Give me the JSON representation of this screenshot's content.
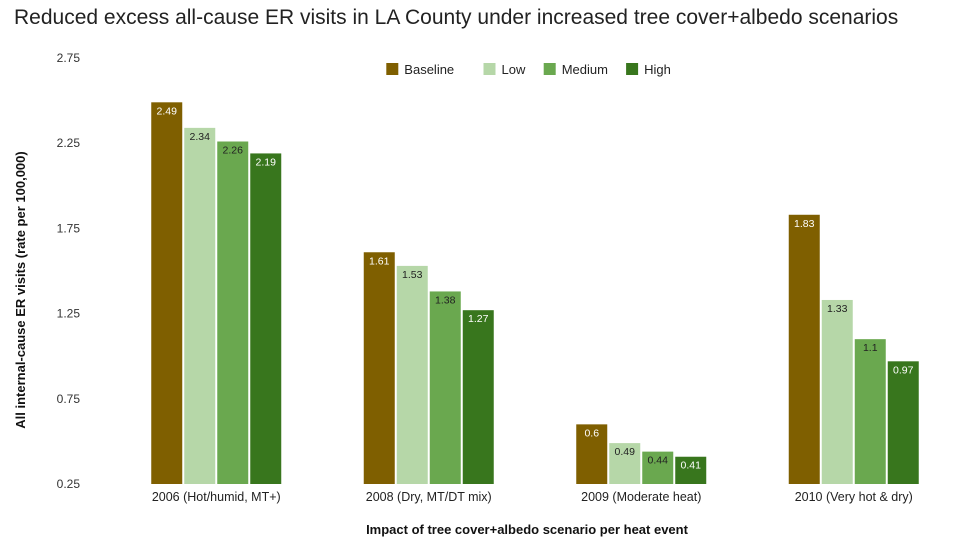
{
  "chart_data": {
    "type": "bar",
    "title": "Reduced excess all-cause ER visits in LA County under increased tree cover+albedo scenarios",
    "xlabel": "Impact of tree cover+albedo scenario per heat event",
    "ylabel": "All internal-cause ER visits (rate per 100,000)",
    "categories": [
      "2006 (Hot/humid, MT+)",
      "2008 (Dry, MT/DT mix)",
      "2009 (Moderate heat)",
      "2010 (Very hot & dry)"
    ],
    "series": [
      {
        "name": "Baseline",
        "color": "#7f5f00",
        "label_color": "#ffffff",
        "values": [
          2.49,
          1.61,
          0.6,
          1.83
        ]
      },
      {
        "name": "Low",
        "color": "#b6d7a8",
        "label_color": "#222222",
        "values": [
          2.34,
          1.53,
          0.49,
          1.33
        ]
      },
      {
        "name": "Medium",
        "color": "#6aa84f",
        "label_color": "#222222",
        "values": [
          2.26,
          1.38,
          0.44,
          1.1
        ]
      },
      {
        "name": "High",
        "color": "#38761d",
        "label_color": "#ffffff",
        "values": [
          2.19,
          1.27,
          0.41,
          0.97
        ]
      }
    ],
    "value_labels": [
      [
        "2.49",
        "1.61",
        "0.6",
        "1.83"
      ],
      [
        "2.34",
        "1.53",
        "0.49",
        "1.33"
      ],
      [
        "2.26",
        "1.38",
        "0.44",
        "1.1"
      ],
      [
        "2.19",
        "1.27",
        "0.41",
        "0.97"
      ]
    ],
    "ylim": [
      0.25,
      2.75
    ],
    "yticks": [
      0.25,
      0.75,
      1.25,
      1.75,
      2.25,
      2.75
    ],
    "ytick_labels": [
      "0.25",
      "0.75",
      "1.25",
      "1.75",
      "2.25",
      "2.75"
    ],
    "grid": false,
    "legend_position": "top-center"
  }
}
